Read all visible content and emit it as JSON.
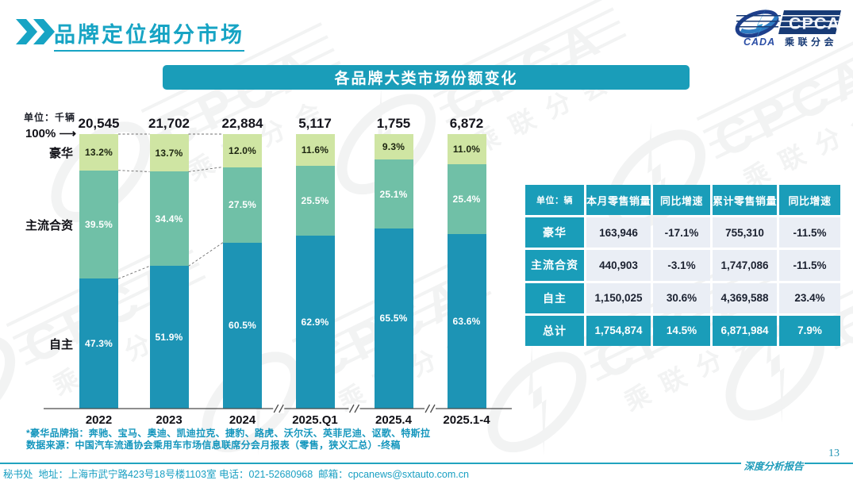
{
  "header": {
    "title": "品牌定位细分市场"
  },
  "logo": {
    "cpca": "CPCA",
    "cada": "CADA",
    "subtitle": "乘联分会"
  },
  "chart_data": {
    "type": "bar",
    "variant": "stacked-percentage",
    "title": "各品牌大类市场份额变化",
    "unit_label": "单位：千辆",
    "axis_marker": "100%",
    "categories": [
      "2022",
      "2023",
      "2024",
      "2025.Q1",
      "2025.4",
      "2025.1-4"
    ],
    "totals": [
      "20,545",
      "21,702",
      "22,884",
      "5,117",
      "1,755",
      "6,872"
    ],
    "series": [
      {
        "name": "豪华",
        "color": "#cfe5a3",
        "label_color": "#1c2410",
        "values": [
          13.2,
          13.7,
          12.0,
          11.6,
          9.3,
          11.0
        ],
        "labels": [
          "13.2%",
          "13.7%",
          "12.0%",
          "11.6%",
          "9.3%",
          "11.0%"
        ]
      },
      {
        "name": "主流合资",
        "color": "#70c0a7",
        "label_color": "#ffffff",
        "values": [
          39.5,
          34.4,
          27.5,
          25.5,
          25.1,
          25.4
        ],
        "labels": [
          "39.5%",
          "34.4%",
          "27.5%",
          "25.5%",
          "25.1%",
          "25.4%"
        ]
      },
      {
        "name": "自主",
        "color": "#1d94b5",
        "label_color": "#ffffff",
        "values": [
          47.3,
          51.9,
          60.5,
          62.9,
          65.5,
          63.6
        ],
        "labels": [
          "47.3%",
          "51.9%",
          "60.5%",
          "62.9%",
          "65.5%",
          "63.6%"
        ]
      }
    ],
    "connected_bars": 3,
    "axis_breaks_after": [
      3,
      4,
      5
    ],
    "ylim": [
      0,
      100
    ],
    "grid": false,
    "legend_position": "left-of-first-bar"
  },
  "table": {
    "headers": [
      "单位：辆",
      "本月零售销量",
      "同比增速",
      "累计零售销量",
      "同比增速"
    ],
    "rows": [
      {
        "label": "豪华",
        "cells": [
          "163,946",
          "-17.1%",
          "755,310",
          "-11.5%"
        ],
        "highlight": false
      },
      {
        "label": "主流合资",
        "cells": [
          "440,903",
          "-3.1%",
          "1,747,086",
          "-11.5%"
        ],
        "highlight": false
      },
      {
        "label": "自主",
        "cells": [
          "1,150,025",
          "30.6%",
          "4,369,588",
          "23.4%"
        ],
        "highlight": false
      },
      {
        "label": "总计",
        "cells": [
          "1,754,874",
          "14.5%",
          "6,871,984",
          "7.9%"
        ],
        "highlight": true
      }
    ]
  },
  "footnotes": [
    "*豪华品牌指：奔驰、宝马、奥迪、凯迪拉克、捷豹、路虎、沃尔沃、英菲尼迪、讴歌、特斯拉",
    "数据来源：中国汽车流通协会乘用车市场信息联席分会月报表（零售，狭义汇总）-终稿"
  ],
  "footer": {
    "contact": "秘书处  地址：上海市武宁路423号18号楼1103室 电话：021-52680968  邮箱：cpcanews@sxtauto.com.cn",
    "report_label": "深度分析报告",
    "page_number": "13"
  },
  "colors": {
    "accent_teal": "#1a9db9",
    "bar_blue": "#1d94b5",
    "bar_green": "#70c0a7",
    "bar_light_green": "#cfe5a3",
    "table_cell_bg": "#eaeef5",
    "dark_text": "#1b2130"
  }
}
